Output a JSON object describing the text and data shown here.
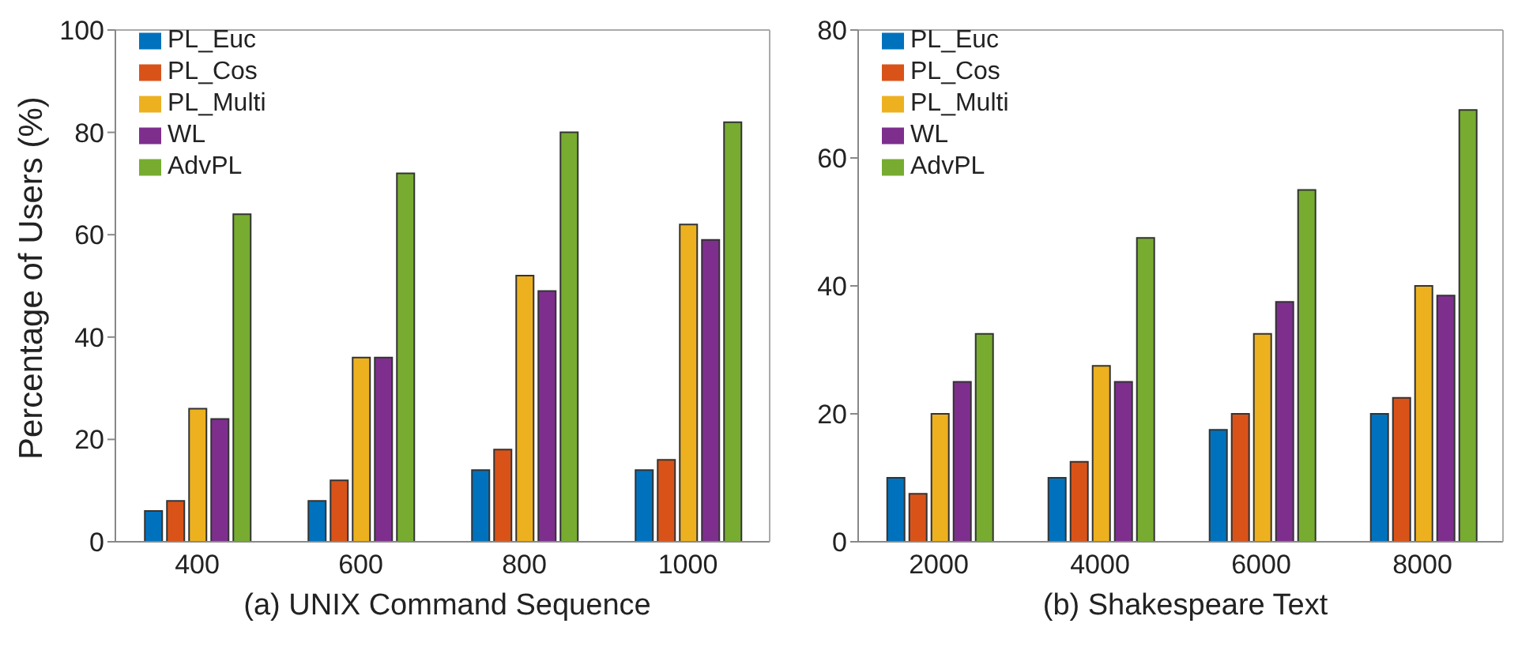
{
  "chart_data": [
    {
      "type": "bar",
      "xlabel": "(a) UNIX Command Sequence",
      "ylabel": "Percentage of Users (%)",
      "categories": [
        "400",
        "600",
        "800",
        "1000"
      ],
      "ylim": [
        0,
        100
      ],
      "yticks": [
        0,
        20,
        40,
        60,
        80,
        100
      ],
      "legend": "top left",
      "grid": false,
      "series": [
        {
          "name": "PL_Euc",
          "color": "#0072bd",
          "values": [
            6,
            8,
            14,
            14
          ]
        },
        {
          "name": "PL_Cos",
          "color": "#d95319",
          "values": [
            8,
            12,
            18,
            16
          ]
        },
        {
          "name": "PL_Multi",
          "color": "#edb120",
          "values": [
            26,
            36,
            52,
            62
          ]
        },
        {
          "name": "WL",
          "color": "#7e2f8e",
          "values": [
            24,
            36,
            49,
            59
          ]
        },
        {
          "name": "AdvPL",
          "color": "#77ac30",
          "values": [
            64,
            72,
            80,
            82
          ]
        }
      ]
    },
    {
      "type": "bar",
      "xlabel": "(b) Shakespeare Text",
      "categories": [
        "2000",
        "4000",
        "6000",
        "8000"
      ],
      "ylim": [
        0,
        80
      ],
      "yticks": [
        0,
        20,
        40,
        60,
        80
      ],
      "legend": "top left",
      "grid": false,
      "series": [
        {
          "name": "PL_Euc",
          "color": "#0072bd",
          "values": [
            10,
            10,
            17.5,
            20
          ]
        },
        {
          "name": "PL_Cos",
          "color": "#d95319",
          "values": [
            7.5,
            12.5,
            20,
            22.5
          ]
        },
        {
          "name": "PL_Multi",
          "color": "#edb120",
          "values": [
            20,
            27.5,
            32.5,
            40
          ]
        },
        {
          "name": "WL",
          "color": "#7e2f8e",
          "values": [
            25,
            25,
            37.5,
            38.5
          ]
        },
        {
          "name": "AdvPL",
          "color": "#77ac30",
          "values": [
            32.5,
            47.5,
            55,
            67.5
          ]
        }
      ]
    }
  ]
}
